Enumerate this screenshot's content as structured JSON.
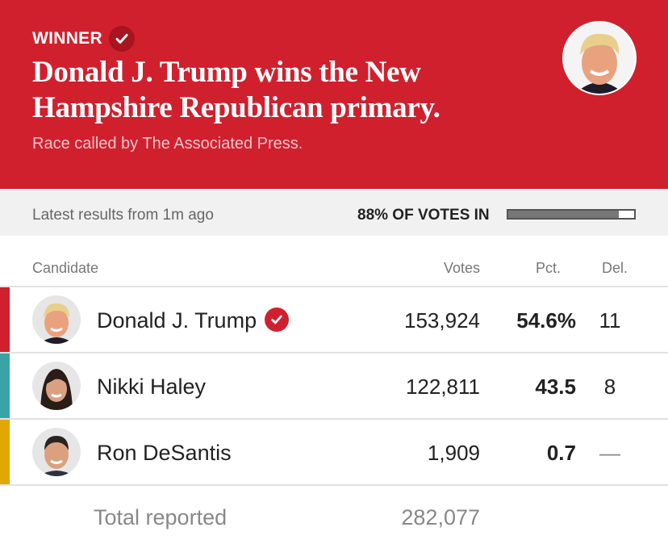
{
  "banner": {
    "winner_label": "WINNER",
    "headline": "Donald J. Trump wins the New Hampshire Republican primary.",
    "called_by": "Race called by The Associated Press.",
    "background_color": "#d0202e"
  },
  "status": {
    "latest": "Latest results from 1m ago",
    "votes_in_label": "88% OF VOTES IN",
    "votes_in_percent": 88
  },
  "table": {
    "headers": {
      "candidate": "Candidate",
      "votes": "Votes",
      "pct": "Pct.",
      "del": "Del."
    },
    "rows": [
      {
        "name": "Donald J. Trump",
        "votes": "153,924",
        "pct": "54.6%",
        "del": "11",
        "color": "#d0202e",
        "winner": true
      },
      {
        "name": "Nikki Haley",
        "votes": "122,811",
        "pct": "43.5",
        "del": "8",
        "color": "#3aa3a6",
        "winner": false
      },
      {
        "name": "Ron DeSantis",
        "votes": "1,909",
        "pct": "0.7",
        "del": "—",
        "color": "#e0a800",
        "winner": false
      }
    ],
    "total_label": "Total reported",
    "total_votes": "282,077"
  }
}
